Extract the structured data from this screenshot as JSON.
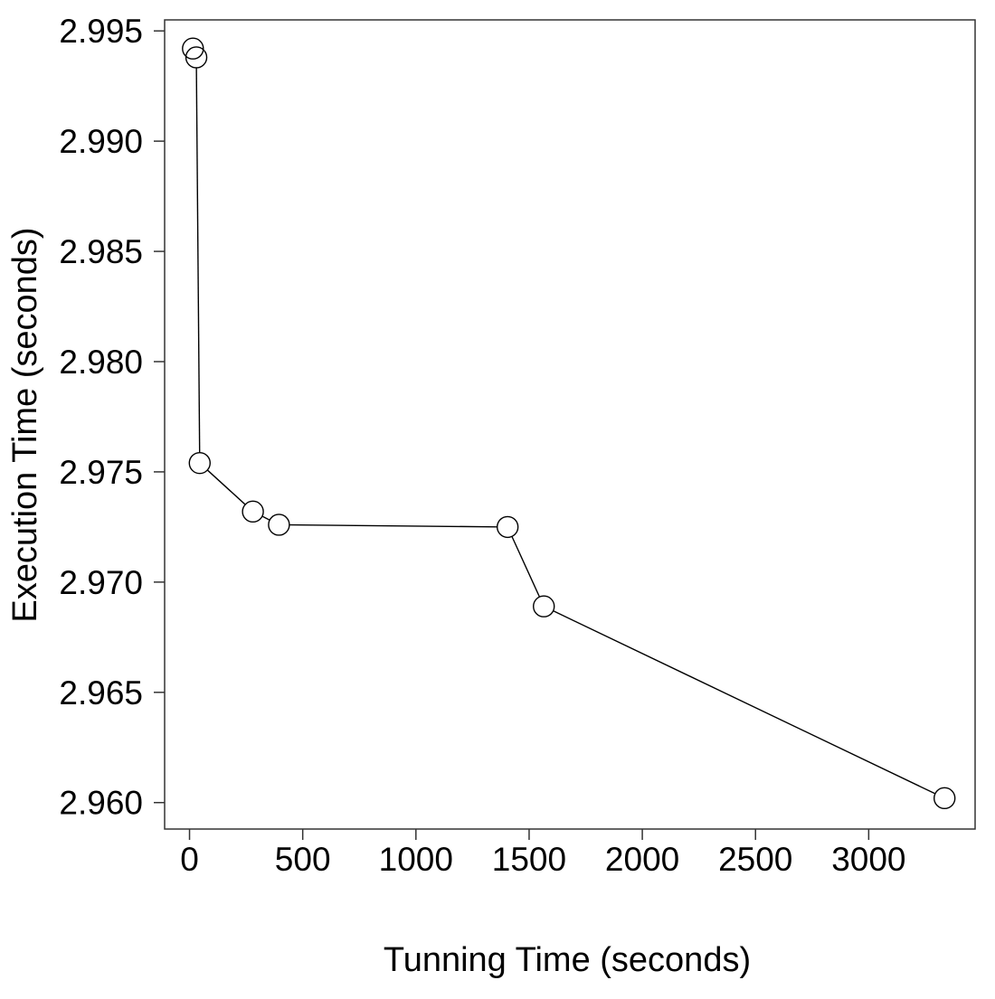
{
  "chart_data": {
    "type": "line",
    "title": "",
    "xlabel": "Tunning Time (seconds)",
    "ylabel": "Execution Time (seconds)",
    "xlim": [
      -110,
      3470
    ],
    "ylim": [
      2.9588,
      2.9955
    ],
    "xticks": [
      0,
      500,
      1000,
      1500,
      2000,
      2500,
      3000
    ],
    "xtick_labels": [
      "0",
      "500",
      "1000",
      "1500",
      "2000",
      "2500",
      "3000"
    ],
    "yticks": [
      2.96,
      2.965,
      2.97,
      2.975,
      2.98,
      2.985,
      2.99,
      2.995
    ],
    "ytick_labels": [
      "2.960",
      "2.965",
      "2.970",
      "2.975",
      "2.980",
      "2.985",
      "2.990",
      "2.995"
    ],
    "grid": false,
    "legend": false,
    "marker": "open-circle",
    "series": [
      {
        "x": [
          15,
          30,
          45,
          280,
          395,
          1405,
          1565,
          3335
        ],
        "y": [
          2.9942,
          2.9938,
          2.9754,
          2.9732,
          2.9726,
          2.9725,
          2.9689,
          2.9602
        ]
      }
    ]
  }
}
